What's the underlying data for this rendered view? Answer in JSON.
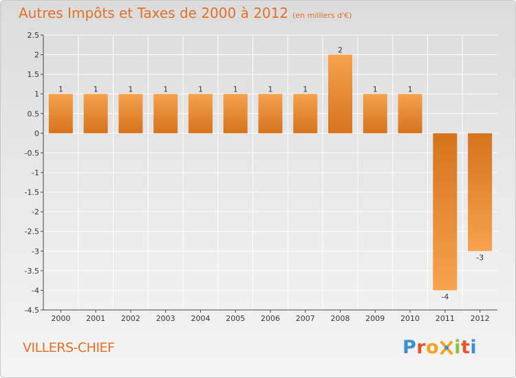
{
  "header": {
    "title": "Autres Impôts et Taxes de 2000 à 2012",
    "subtitle": "(en milliers d'€)"
  },
  "footer": {
    "commune": "VILLERS-CHIEF",
    "brand_letters": [
      "P",
      "r",
      "o",
      "x",
      "i",
      "t",
      "i"
    ],
    "brand_colors": [
      "#3a8fd6",
      "#e8542a",
      "#f1a321",
      "#3a8fd6",
      "#8cbf3f",
      "#e8542a",
      "#3a8fd6"
    ]
  },
  "chart_data": {
    "type": "bar",
    "title": "Autres Impôts et Taxes de 2000 à 2012",
    "xlabel": "",
    "ylabel": "",
    "categories": [
      "2000",
      "2001",
      "2002",
      "2003",
      "2004",
      "2005",
      "2006",
      "2007",
      "2008",
      "2009",
      "2010",
      "2011",
      "2012"
    ],
    "values": [
      1,
      1,
      1,
      1,
      1,
      1,
      1,
      1,
      2,
      1,
      1,
      -4,
      -3
    ],
    "data_labels": [
      "1",
      "1",
      "1",
      "1",
      "1",
      "1",
      "1",
      "1",
      "2",
      "1",
      "1",
      "-4",
      "-3"
    ],
    "ylim": [
      -4.5,
      2.5
    ],
    "yticks": [
      2.5,
      2,
      1.5,
      1,
      0.5,
      0,
      -0.5,
      -1,
      -1.5,
      -2,
      -2.5,
      -3,
      -3.5,
      -4,
      -4.5
    ],
    "ytick_labels": [
      "2.5",
      "2",
      "1.5",
      "1",
      "0.5",
      "0",
      "-0.5",
      "-1",
      "-1.5",
      "-2",
      "-2.5",
      "-3",
      "-3.5",
      "-4",
      "-4.5"
    ],
    "grid": true,
    "colors": {
      "bar_light": "#f6a24e",
      "bar_dark": "#d5731c",
      "grid": "#ffffff",
      "axis": "#444444"
    }
  }
}
